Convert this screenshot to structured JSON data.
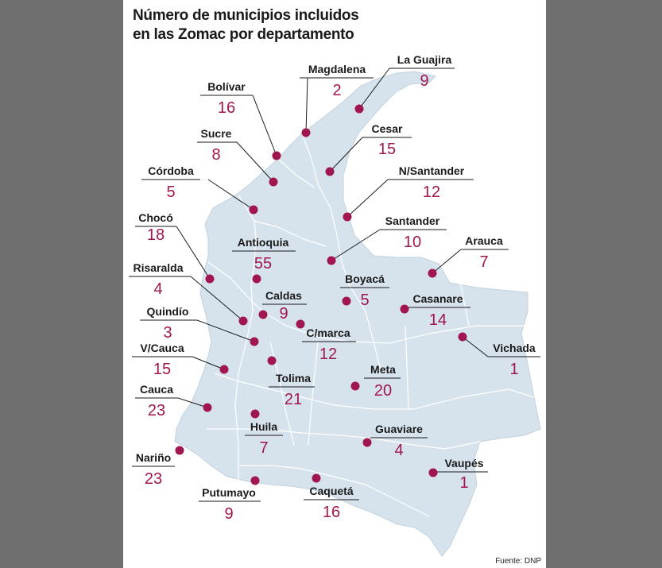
{
  "title_lines": [
    "Número de municipios incluidos",
    "en las Zomac por departamento"
  ],
  "source": "Fuente: DNP",
  "colors": {
    "map_fill": "#d6e3ec",
    "border": "#ffffff",
    "dot": "#a0174f",
    "value": "#a0174f",
    "label": "#1a1a1a"
  },
  "chart_data": {
    "type": "map",
    "title": "Número de municipios incluidos en las Zomac por departamento",
    "series_unit": "municipios",
    "departments": [
      {
        "name": "Magdalena",
        "value": 2
      },
      {
        "name": "La Guajira",
        "value": 9
      },
      {
        "name": "Bolívar",
        "value": 16
      },
      {
        "name": "Sucre",
        "value": 8
      },
      {
        "name": "Cesar",
        "value": 15
      },
      {
        "name": "Córdoba",
        "value": 5
      },
      {
        "name": "N/Santander",
        "value": 12
      },
      {
        "name": "Chocó",
        "value": 18
      },
      {
        "name": "Santander",
        "value": 10
      },
      {
        "name": "Antioquia",
        "value": 55
      },
      {
        "name": "Arauca",
        "value": 7
      },
      {
        "name": "Risaralda",
        "value": 4
      },
      {
        "name": "Boyacá",
        "value": 5
      },
      {
        "name": "Caldas",
        "value": 9
      },
      {
        "name": "Casanare",
        "value": 14
      },
      {
        "name": "Quindío",
        "value": 3
      },
      {
        "name": "C/marca",
        "value": 12
      },
      {
        "name": "Vichada",
        "value": 1
      },
      {
        "name": "V/Cauca",
        "value": 15
      },
      {
        "name": "Tolima",
        "value": 21
      },
      {
        "name": "Meta",
        "value": 20
      },
      {
        "name": "Cauca",
        "value": 23
      },
      {
        "name": "Huila",
        "value": 7
      },
      {
        "name": "Guaviare",
        "value": 4
      },
      {
        "name": "Nariño",
        "value": 23
      },
      {
        "name": "Vaupés",
        "value": 1
      },
      {
        "name": "Putumayo",
        "value": 9
      },
      {
        "name": "Caquetá",
        "value": 16
      }
    ]
  }
}
